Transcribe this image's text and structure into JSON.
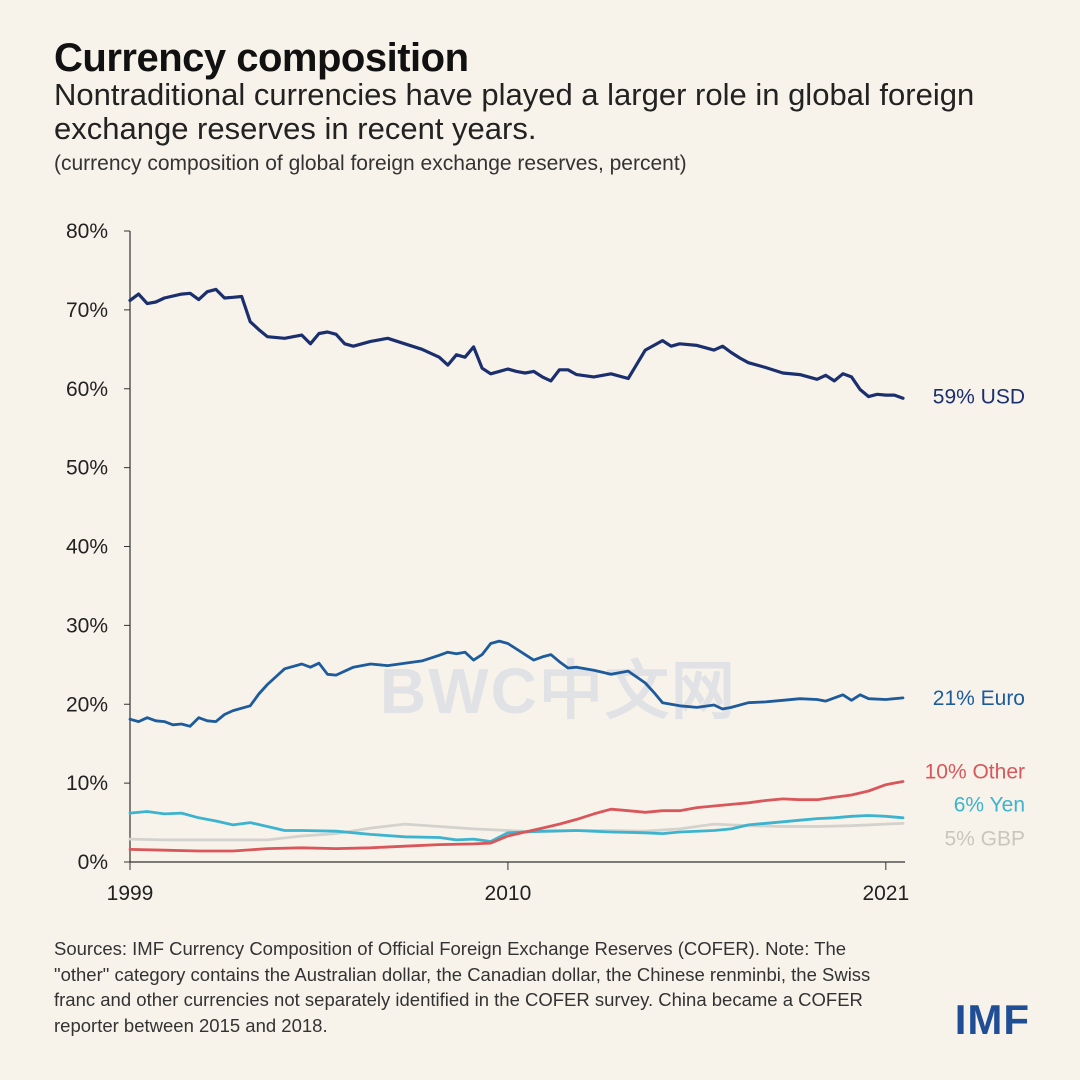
{
  "header": {
    "title": "Currency composition",
    "subtitle": "Nontraditional currencies have played a larger role in global foreign exchange reserves in recent years.",
    "units_note": "(currency composition of global foreign exchange reserves, percent)"
  },
  "watermark_text": "BWC中文网",
  "footer": {
    "sources": "Sources: IMF Currency Composition of Official Foreign Exchange Reserves (COFER). Note: The \"other\" category contains the Australian dollar, the Canadian dollar, the Chinese renminbi, the Swiss franc and other currencies not separately identified in the COFER survey. China became a COFER reporter between 2015 and 2018.",
    "logo": "IMF"
  },
  "chart_data": {
    "type": "line",
    "title": "Currency composition",
    "ylabel": "",
    "xlabel": "",
    "ylim": [
      0,
      80
    ],
    "xlim": [
      1999,
      2021.5
    ],
    "y_ticks": [
      "0%",
      "10%",
      "20%",
      "30%",
      "40%",
      "50%",
      "60%",
      "70%",
      "80%"
    ],
    "x_ticks": [
      {
        "value": 1999,
        "label": "1999"
      },
      {
        "value": 2010,
        "label": "2010"
      },
      {
        "value": 2021,
        "label": "2021"
      }
    ],
    "grid": false,
    "series": [
      {
        "name": "USD",
        "end_label": "59% USD",
        "color": "#1b2f6e",
        "x": [
          1999,
          1999.25,
          1999.5,
          1999.75,
          2000,
          2000.5,
          2000.75,
          2001,
          2001.25,
          2001.5,
          2001.75,
          2002,
          2002.25,
          2002.5,
          2002.75,
          2003,
          2003.5,
          2004,
          2004.25,
          2004.5,
          2004.75,
          2005,
          2005.25,
          2005.5,
          2006,
          2006.5,
          2007,
          2007.5,
          2008,
          2008.25,
          2008.5,
          2008.75,
          2009,
          2009.25,
          2009.5,
          2009.75,
          2010,
          2010.25,
          2010.5,
          2010.75,
          2011,
          2011.25,
          2011.5,
          2011.75,
          2012,
          2012.5,
          2013,
          2013.5,
          2014,
          2014.25,
          2014.5,
          2014.75,
          2015,
          2015.5,
          2016,
          2016.25,
          2016.5,
          2016.75,
          2017,
          2017.5,
          2018,
          2018.5,
          2019,
          2019.25,
          2019.5,
          2019.75,
          2020,
          2020.25,
          2020.5,
          2020.75,
          2021,
          2021.25,
          2021.5
        ],
        "y": [
          71.2,
          72.0,
          70.8,
          71.0,
          71.5,
          72.0,
          72.1,
          71.3,
          72.3,
          72.6,
          71.5,
          71.6,
          71.7,
          68.5,
          67.5,
          66.6,
          66.4,
          66.8,
          65.7,
          67.0,
          67.2,
          66.9,
          65.7,
          65.4,
          66.0,
          66.4,
          65.7,
          65.0,
          64.0,
          63.0,
          64.3,
          64.0,
          65.3,
          62.6,
          61.9,
          62.2,
          62.5,
          62.2,
          62.0,
          62.2,
          61.5,
          61.0,
          62.4,
          62.4,
          61.8,
          61.5,
          61.9,
          61.3,
          64.9,
          65.5,
          66.1,
          65.4,
          65.7,
          65.5,
          64.9,
          65.4,
          64.6,
          63.9,
          63.3,
          62.7,
          62.0,
          61.8,
          61.2,
          61.7,
          61.0,
          61.9,
          61.5,
          59.9,
          59.0,
          59.3,
          59.2,
          59.2,
          58.8
        ]
      },
      {
        "name": "Euro",
        "end_label": "21% Euro",
        "color": "#1d5b9c",
        "x": [
          1999,
          1999.25,
          1999.5,
          1999.75,
          2000,
          2000.25,
          2000.5,
          2000.75,
          2001,
          2001.25,
          2001.5,
          2001.75,
          2002,
          2002.5,
          2002.75,
          2003,
          2003.5,
          2004,
          2004.25,
          2004.5,
          2004.75,
          2005,
          2005.5,
          2006,
          2006.5,
          2007,
          2007.5,
          2008,
          2008.25,
          2008.5,
          2008.75,
          2009,
          2009.25,
          2009.5,
          2009.75,
          2010,
          2010.25,
          2010.5,
          2010.75,
          2011,
          2011.25,
          2011.5,
          2011.75,
          2012,
          2012.5,
          2013,
          2013.5,
          2014,
          2014.25,
          2014.5,
          2014.75,
          2015,
          2015.5,
          2016,
          2016.25,
          2016.5,
          2017,
          2017.5,
          2018,
          2018.5,
          2019,
          2019.25,
          2019.5,
          2019.75,
          2020,
          2020.25,
          2020.5,
          2021,
          2021.5
        ],
        "y": [
          18.1,
          17.8,
          18.3,
          17.9,
          17.8,
          17.4,
          17.5,
          17.2,
          18.3,
          17.9,
          17.8,
          18.7,
          19.2,
          19.8,
          21.3,
          22.5,
          24.5,
          25.1,
          24.7,
          25.2,
          23.8,
          23.7,
          24.7,
          25.1,
          24.9,
          25.2,
          25.5,
          26.2,
          26.6,
          26.4,
          26.6,
          25.6,
          26.3,
          27.7,
          28.0,
          27.7,
          27.0,
          26.3,
          25.6,
          26.0,
          26.3,
          25.4,
          24.6,
          24.7,
          24.3,
          23.8,
          24.2,
          22.7,
          21.5,
          20.2,
          20.0,
          19.8,
          19.6,
          19.9,
          19.4,
          19.6,
          20.2,
          20.3,
          20.5,
          20.7,
          20.6,
          20.4,
          20.8,
          21.2,
          20.5,
          21.2,
          20.7,
          20.6,
          20.8
        ]
      },
      {
        "name": "Other",
        "end_label": "10% Other",
        "color": "#d9575a",
        "x": [
          1999,
          2000,
          2001,
          2002,
          2003,
          2004,
          2005,
          2006,
          2007,
          2008,
          2009,
          2009.5,
          2010,
          2010.5,
          2011,
          2011.5,
          2012,
          2012.5,
          2013,
          2013.5,
          2014,
          2014.5,
          2015,
          2015.5,
          2016,
          2016.5,
          2017,
          2017.5,
          2018,
          2018.5,
          2019,
          2019.5,
          2020,
          2020.5,
          2021,
          2021.5
        ],
        "y": [
          1.6,
          1.5,
          1.4,
          1.4,
          1.7,
          1.8,
          1.7,
          1.8,
          2.0,
          2.2,
          2.3,
          2.4,
          3.3,
          3.8,
          4.3,
          4.8,
          5.4,
          6.1,
          6.7,
          6.5,
          6.3,
          6.5,
          6.5,
          6.9,
          7.1,
          7.3,
          7.5,
          7.8,
          8.0,
          7.9,
          7.9,
          8.2,
          8.5,
          9.0,
          9.8,
          10.2
        ]
      },
      {
        "name": "Yen",
        "end_label": "6% Yen",
        "color": "#3cb3cf",
        "x": [
          1999,
          1999.5,
          2000,
          2000.5,
          2001,
          2001.5,
          2002,
          2002.5,
          2003,
          2003.5,
          2004,
          2005,
          2006,
          2007,
          2008,
          2008.5,
          2009,
          2009.5,
          2010,
          2011,
          2012,
          2013,
          2014,
          2014.5,
          2015,
          2016,
          2016.5,
          2017,
          2018,
          2018.5,
          2019,
          2019.5,
          2020,
          2020.5,
          2021,
          2021.5
        ],
        "y": [
          6.2,
          6.4,
          6.1,
          6.2,
          5.6,
          5.2,
          4.7,
          5.0,
          4.5,
          4.0,
          4.0,
          3.9,
          3.5,
          3.2,
          3.1,
          2.8,
          2.9,
          2.6,
          3.7,
          3.9,
          4.0,
          3.8,
          3.7,
          3.6,
          3.8,
          4.0,
          4.2,
          4.7,
          5.1,
          5.3,
          5.5,
          5.6,
          5.8,
          5.9,
          5.8,
          5.6
        ]
      },
      {
        "name": "GBP",
        "end_label": "5% GBP",
        "color": "#d4d2cc",
        "x": [
          1999,
          2000,
          2001,
          2002,
          2003,
          2004,
          2005,
          2006,
          2007,
          2008,
          2009,
          2010,
          2011,
          2012,
          2013,
          2014,
          2015,
          2016,
          2017,
          2018,
          2019,
          2020,
          2021,
          2021.5
        ],
        "y": [
          2.9,
          2.8,
          2.8,
          2.8,
          2.8,
          3.3,
          3.6,
          4.3,
          4.8,
          4.5,
          4.2,
          4.0,
          3.8,
          4.0,
          4.0,
          3.9,
          4.2,
          4.8,
          4.6,
          4.5,
          4.5,
          4.6,
          4.8,
          4.9
        ]
      }
    ]
  }
}
